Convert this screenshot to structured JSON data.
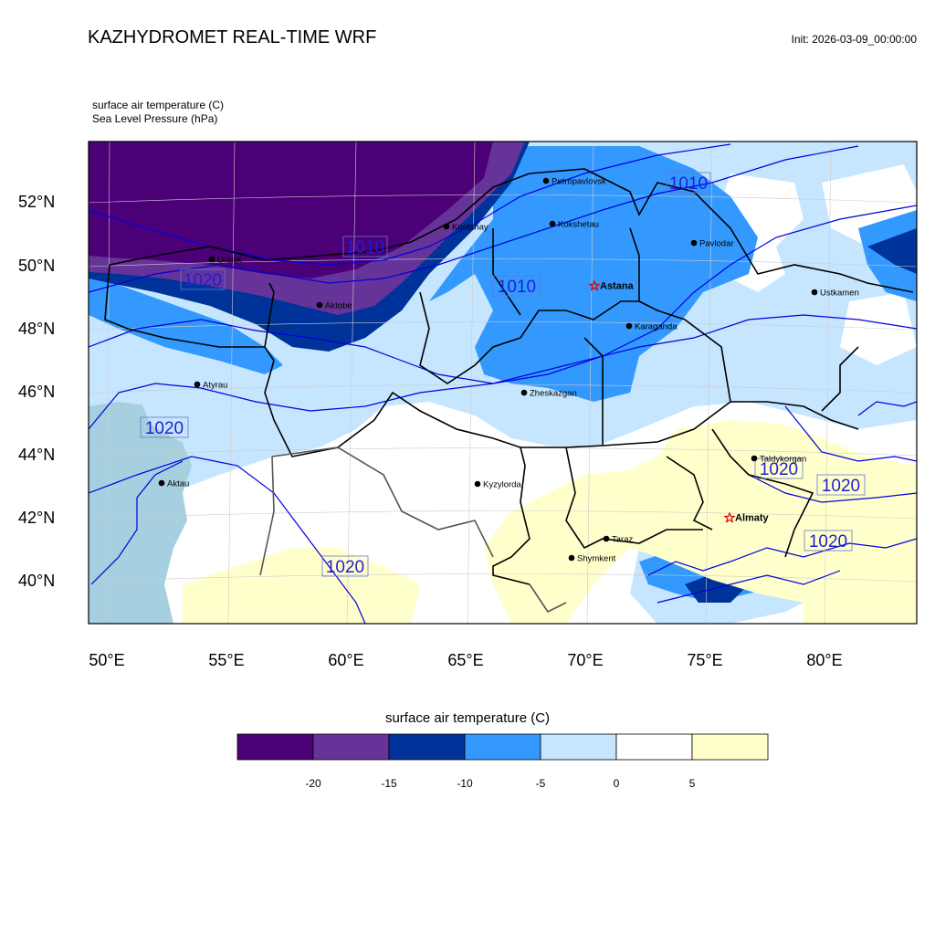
{
  "header": {
    "title": "KAZHYDROMET REAL-TIME WRF",
    "init": "Init: 2026-03-09_00:00:00",
    "variable_1": "surface air temperature   (C)",
    "variable_2": "Sea Level Pressure   (hPa)"
  },
  "map": {
    "lat_labels": [
      "52°N",
      "50°N",
      "48°N",
      "46°N",
      "44°N",
      "42°N",
      "40°N"
    ],
    "lon_labels": [
      "50°E",
      "55°E",
      "60°E",
      "65°E",
      "70°E",
      "75°E",
      "80°E"
    ],
    "cities": [
      {
        "name": "Petropavlovsk",
        "capital": false
      },
      {
        "name": "Kostanay",
        "capital": false
      },
      {
        "name": "Kokshetau",
        "capital": false
      },
      {
        "name": "Uralsk",
        "capital": false
      },
      {
        "name": "Pavlodar",
        "capital": false
      },
      {
        "name": "Astana",
        "capital": true
      },
      {
        "name": "Aktobe",
        "capital": false
      },
      {
        "name": "Ustkamen",
        "capital": false
      },
      {
        "name": "Karaganda",
        "capital": false
      },
      {
        "name": "Atyrau",
        "capital": false
      },
      {
        "name": "Zheskazgan",
        "capital": false
      },
      {
        "name": "Taldykorgan",
        "capital": false
      },
      {
        "name": "Kyzylorda",
        "capital": false
      },
      {
        "name": "Aktau",
        "capital": false
      },
      {
        "name": "Almaty",
        "capital": true
      },
      {
        "name": "Taraz",
        "capital": false
      },
      {
        "name": "Shymkent",
        "capital": false
      }
    ],
    "pressure_labels": [
      "1010",
      "1010",
      "1010",
      "1020",
      "1020",
      "1020",
      "1020",
      "1020",
      "1020"
    ]
  },
  "colorbar": {
    "title": "surface air temperature (C)",
    "colors": [
      "#4b0078",
      "#663399",
      "#003399",
      "#3399ff",
      "#c6e5ff",
      "#ffffff",
      "#ffffcc"
    ],
    "ticks": [
      "-20",
      "-15",
      "-10",
      "-5",
      "0",
      "5"
    ]
  }
}
